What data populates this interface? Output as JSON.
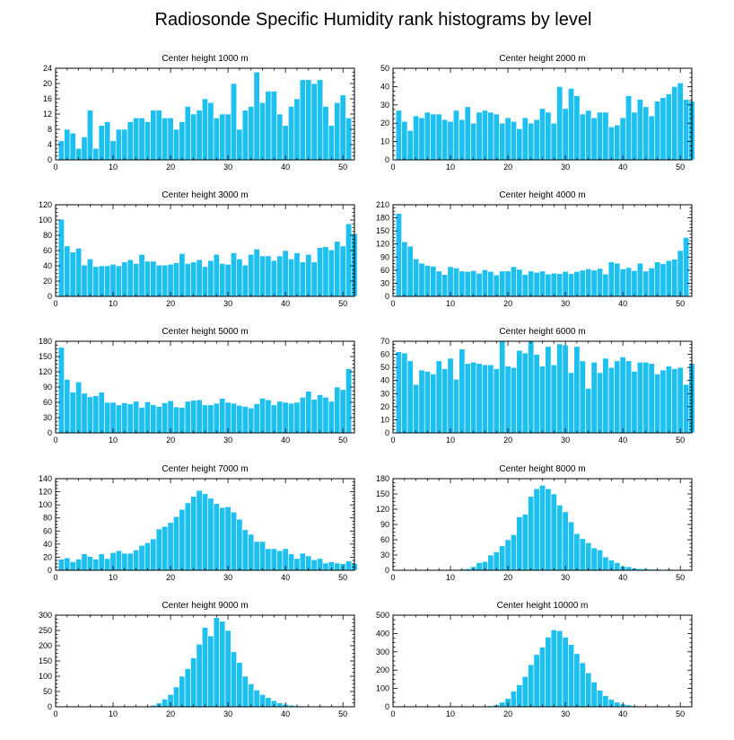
{
  "title": "Radiosonde Specific Humidity rank histograms by level",
  "colors": {
    "bar": "#1ec0f0",
    "axis": "#000000"
  },
  "chart_data": [
    {
      "type": "bar",
      "title": "Center height 1000 m",
      "xlim": [
        0,
        52
      ],
      "ylim": [
        0,
        24
      ],
      "xticks": [
        0,
        10,
        20,
        30,
        40,
        50
      ],
      "yticks": [
        0,
        4,
        8,
        12,
        16,
        20,
        24
      ],
      "values": [
        5,
        8,
        7,
        3,
        6,
        13,
        3,
        9,
        10,
        5,
        8,
        8,
        10,
        11,
        11,
        10,
        13,
        13,
        11,
        11,
        8,
        10,
        14,
        12,
        13,
        16,
        15,
        11,
        12,
        12,
        20,
        8,
        13,
        14,
        23,
        15,
        18,
        18,
        12,
        9,
        14,
        16,
        21,
        21,
        20,
        21,
        14,
        9,
        15,
        17,
        11
      ]
    },
    {
      "type": "bar",
      "title": "Center height 2000 m",
      "xlim": [
        0,
        52
      ],
      "ylim": [
        0,
        50
      ],
      "xticks": [
        0,
        10,
        20,
        30,
        40,
        50
      ],
      "yticks": [
        0,
        10,
        20,
        30,
        40,
        50
      ],
      "values": [
        27,
        21,
        16,
        24,
        23,
        26,
        25,
        25,
        22,
        21,
        27,
        22,
        29,
        20,
        26,
        27,
        26,
        25,
        20,
        23,
        21,
        17,
        23,
        20,
        22,
        28,
        26,
        20,
        40,
        28,
        39,
        35,
        25,
        27,
        23,
        26,
        26,
        18,
        19,
        23,
        35,
        26,
        33,
        29,
        24,
        32,
        34,
        36,
        40,
        42,
        33,
        32
      ]
    },
    {
      "type": "bar",
      "title": "Center height 3000 m",
      "xlim": [
        0,
        52
      ],
      "ylim": [
        0,
        120
      ],
      "xticks": [
        0,
        10,
        20,
        30,
        40,
        50
      ],
      "yticks": [
        0,
        20,
        40,
        60,
        80,
        100,
        120
      ],
      "values": [
        101,
        66,
        58,
        63,
        41,
        49,
        39,
        40,
        40,
        42,
        40,
        45,
        48,
        43,
        55,
        46,
        46,
        41,
        41,
        42,
        44,
        56,
        43,
        45,
        48,
        39,
        47,
        55,
        43,
        42,
        57,
        49,
        41,
        55,
        62,
        53,
        53,
        47,
        53,
        60,
        49,
        57,
        45,
        55,
        45,
        64,
        65,
        61,
        72,
        66,
        95,
        82
      ]
    },
    {
      "type": "bar",
      "title": "Center height 4000 m",
      "xlim": [
        0,
        52
      ],
      "ylim": [
        0,
        210
      ],
      "xticks": [
        0,
        10,
        20,
        30,
        40,
        50
      ],
      "yticks": [
        0,
        30,
        60,
        90,
        120,
        150,
        180,
        210
      ],
      "values": [
        190,
        125,
        115,
        86,
        76,
        71,
        69,
        58,
        50,
        68,
        65,
        58,
        57,
        59,
        53,
        61,
        57,
        49,
        58,
        58,
        68,
        62,
        50,
        58,
        55,
        58,
        51,
        53,
        52,
        57,
        52,
        57,
        60,
        63,
        60,
        64,
        51,
        79,
        76,
        63,
        66,
        59,
        76,
        58,
        65,
        79,
        75,
        82,
        85,
        105,
        135
      ]
    },
    {
      "type": "bar",
      "title": "Center height 5000 m",
      "xlim": [
        0,
        52
      ],
      "ylim": [
        0,
        180
      ],
      "xticks": [
        0,
        10,
        20,
        30,
        40,
        50
      ],
      "yticks": [
        0,
        30,
        60,
        90,
        120,
        150,
        180
      ],
      "values": [
        168,
        105,
        80,
        100,
        78,
        71,
        73,
        80,
        60,
        60,
        55,
        59,
        57,
        62,
        50,
        61,
        55,
        52,
        59,
        63,
        51,
        50,
        62,
        64,
        65,
        55,
        55,
        58,
        68,
        60,
        58,
        54,
        52,
        49,
        57,
        68,
        65,
        55,
        62,
        60,
        58,
        60,
        70,
        82,
        66,
        75,
        70,
        62,
        90,
        85,
        126
      ]
    },
    {
      "type": "bar",
      "title": "Center height 6000 m",
      "xlim": [
        0,
        52
      ],
      "ylim": [
        0,
        70
      ],
      "xticks": [
        0,
        10,
        20,
        30,
        40,
        50
      ],
      "yticks": [
        0,
        10,
        20,
        30,
        40,
        50,
        60,
        70
      ],
      "values": [
        62,
        61,
        55,
        37,
        48,
        47,
        45,
        55,
        49,
        57,
        41,
        64,
        53,
        54,
        53,
        52,
        52,
        49,
        70,
        51,
        50,
        63,
        61,
        70,
        60,
        51,
        66,
        52,
        68,
        67,
        46,
        66,
        55,
        34,
        54,
        46,
        57,
        50,
        55,
        58,
        55,
        47,
        54,
        54,
        53,
        45,
        48,
        51,
        49,
        50,
        37,
        53
      ]
    },
    {
      "type": "bar",
      "title": "Center height 7000 m",
      "xlim": [
        0,
        52
      ],
      "ylim": [
        0,
        140
      ],
      "xticks": [
        0,
        10,
        20,
        30,
        40,
        50
      ],
      "yticks": [
        0,
        20,
        40,
        60,
        80,
        100,
        120,
        140
      ],
      "values": [
        17,
        19,
        13,
        17,
        25,
        21,
        17,
        25,
        18,
        27,
        30,
        26,
        26,
        31,
        38,
        42,
        48,
        63,
        67,
        73,
        82,
        93,
        103,
        113,
        122,
        117,
        110,
        102,
        96,
        97,
        89,
        78,
        62,
        55,
        44,
        44,
        33,
        33,
        30,
        33,
        25,
        18,
        26,
        22,
        16,
        18,
        11,
        13,
        11,
        10,
        14,
        10
      ]
    },
    {
      "type": "bar",
      "title": "Center height 8000 m",
      "xlim": [
        0,
        52
      ],
      "ylim": [
        0,
        180
      ],
      "xticks": [
        0,
        10,
        20,
        30,
        40,
        50
      ],
      "yticks": [
        0,
        30,
        60,
        90,
        120,
        150,
        180
      ],
      "values": [
        0,
        0,
        0,
        0,
        0,
        0,
        0,
        0,
        0,
        0,
        0,
        2,
        3,
        7,
        15,
        17,
        30,
        36,
        48,
        60,
        70,
        105,
        110,
        145,
        160,
        167,
        160,
        150,
        128,
        115,
        95,
        72,
        62,
        54,
        44,
        40,
        26,
        20,
        15,
        8,
        7,
        4,
        3,
        3,
        2,
        2,
        1,
        2,
        0,
        0,
        0,
        0
      ]
    },
    {
      "type": "bar",
      "title": "Center height 9000 m",
      "xlim": [
        0,
        52
      ],
      "ylim": [
        0,
        300
      ],
      "xticks": [
        0,
        10,
        20,
        30,
        40,
        50
      ],
      "yticks": [
        0,
        50,
        100,
        150,
        200,
        250,
        300
      ],
      "values": [
        0,
        0,
        0,
        0,
        0,
        0,
        0,
        0,
        0,
        0,
        0,
        0,
        0,
        0,
        0,
        2,
        5,
        12,
        25,
        40,
        65,
        100,
        125,
        160,
        205,
        260,
        232,
        292,
        280,
        250,
        180,
        145,
        100,
        75,
        55,
        40,
        30,
        20,
        13,
        8,
        5,
        3,
        2,
        1,
        1,
        0,
        0,
        0,
        0,
        0,
        0,
        0
      ]
    },
    {
      "type": "bar",
      "title": "Center height 10000 m",
      "xlim": [
        0,
        52
      ],
      "ylim": [
        0,
        500
      ],
      "xticks": [
        0,
        10,
        20,
        30,
        40,
        50
      ],
      "yticks": [
        0,
        100,
        200,
        300,
        400,
        500
      ],
      "values": [
        0,
        0,
        0,
        0,
        0,
        0,
        0,
        0,
        0,
        0,
        0,
        0,
        0,
        0,
        0,
        3,
        5,
        10,
        25,
        45,
        85,
        120,
        165,
        230,
        285,
        325,
        380,
        420,
        415,
        380,
        340,
        290,
        240,
        185,
        135,
        90,
        60,
        40,
        25,
        15,
        10,
        5,
        3,
        2,
        1,
        0,
        0,
        0,
        0,
        0,
        0,
        0
      ]
    }
  ]
}
